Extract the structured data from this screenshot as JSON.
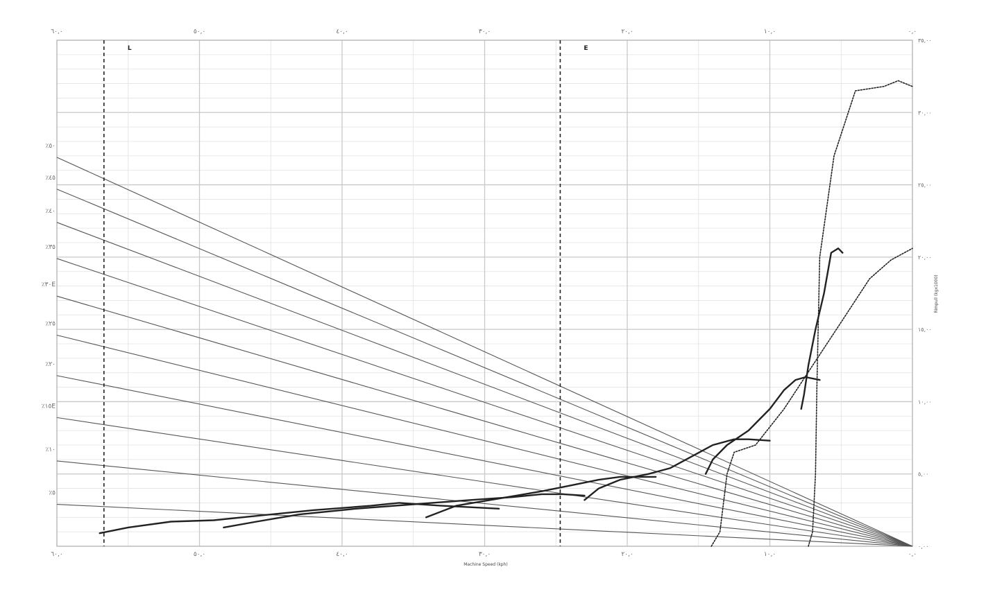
{
  "chart_data": {
    "type": "line",
    "title": "",
    "xlabel": "Machine Speed (kph)",
    "ylabel": "Rimpull (kgx1000)",
    "x_tick_labels": [
      "٦٠,٠",
      "٥٠,٠",
      "٤٠,٠",
      "٣٠,٠",
      "٢٠,٠",
      "١٠,٠",
      "٠,٠"
    ],
    "y_tick_labels": [
      "٠,٠٠",
      "٥,٠٠",
      "١٠,٠٠",
      "١٥,٠٠",
      "٢٠,٠٠",
      "٢٥,٠٠",
      "٣٠,٠٠",
      "٣٥,٠٠"
    ],
    "xlim": [
      60,
      0
    ],
    "ylim": [
      0,
      35
    ],
    "grade_labels": [
      "٪٥٠",
      "٪٤٥",
      "٪٤٠",
      "٪٣٥",
      "٪٣٠E",
      "٪٢٥",
      "٪٢٠",
      "٪١٥E",
      "٪١٠",
      "٪٥"
    ],
    "grade_lines": [
      {
        "label_index": 0,
        "y_at_left": 26.9
      },
      {
        "label_index": 1,
        "y_at_left": 24.7
      },
      {
        "label_index": 2,
        "y_at_left": 22.4
      },
      {
        "label_index": 3,
        "y_at_left": 19.9
      },
      {
        "label_index": 4,
        "y_at_left": 17.3
      },
      {
        "label_index": 5,
        "y_at_left": 14.6
      },
      {
        "label_index": 6,
        "y_at_left": 11.8
      },
      {
        "label_index": 7,
        "y_at_left": 8.9
      },
      {
        "label_index": 8,
        "y_at_left": 5.9
      },
      {
        "label_index": 9,
        "y_at_left": 2.9
      }
    ],
    "zone_markers": [
      {
        "label": "L",
        "x": 56.7
      },
      {
        "label": "E",
        "x": 24.7
      }
    ],
    "series": [
      {
        "style": "solid",
        "points": [
          [
            57.0,
            0.9
          ],
          [
            55.0,
            1.3
          ],
          [
            52.0,
            1.7
          ],
          [
            49.0,
            1.8
          ],
          [
            46.0,
            2.1
          ],
          [
            42.0,
            2.5
          ],
          [
            38.0,
            2.8
          ],
          [
            36.0,
            3.0
          ],
          [
            33.0,
            2.8
          ],
          [
            31.0,
            2.7
          ],
          [
            29.0,
            2.6
          ]
        ]
      },
      {
        "style": "solid",
        "points": [
          [
            48.3,
            1.3
          ],
          [
            46.0,
            1.7
          ],
          [
            43.0,
            2.2
          ],
          [
            39.0,
            2.6
          ],
          [
            35.0,
            2.9
          ],
          [
            31.0,
            3.2
          ],
          [
            28.0,
            3.4
          ],
          [
            26.0,
            3.6
          ],
          [
            24.5,
            3.6
          ],
          [
            23.0,
            3.5
          ]
        ]
      },
      {
        "style": "solid",
        "points": [
          [
            34.1,
            2.0
          ],
          [
            32.0,
            2.8
          ],
          [
            29.0,
            3.3
          ],
          [
            26.0,
            3.8
          ],
          [
            24.0,
            4.2
          ],
          [
            22.0,
            4.6
          ],
          [
            20.5,
            4.8
          ],
          [
            19.0,
            4.8
          ],
          [
            18.0,
            4.8
          ]
        ]
      },
      {
        "style": "solid",
        "points": [
          [
            23.0,
            3.2
          ],
          [
            22.0,
            4.0
          ],
          [
            20.5,
            4.6
          ],
          [
            18.5,
            5.0
          ],
          [
            17.0,
            5.4
          ],
          [
            15.5,
            6.2
          ],
          [
            14.0,
            7.0
          ],
          [
            12.5,
            7.4
          ],
          [
            11.5,
            7.4
          ],
          [
            10.0,
            7.3
          ]
        ]
      },
      {
        "style": "solid",
        "points": [
          [
            14.5,
            5.0
          ],
          [
            14.0,
            6.0
          ],
          [
            13.0,
            7.0
          ],
          [
            11.5,
            8.0
          ],
          [
            10.0,
            9.5
          ],
          [
            9.0,
            10.8
          ],
          [
            8.2,
            11.5
          ],
          [
            7.5,
            11.7
          ],
          [
            6.5,
            11.5
          ]
        ]
      },
      {
        "style": "solid",
        "points": [
          [
            7.8,
            9.5
          ],
          [
            7.6,
            10.5
          ],
          [
            7.3,
            12.5
          ],
          [
            6.8,
            15.0
          ],
          [
            6.2,
            17.5
          ],
          [
            5.7,
            20.3
          ],
          [
            5.2,
            20.6
          ],
          [
            4.9,
            20.3
          ]
        ]
      },
      {
        "style": "dotted",
        "points": [
          [
            14.1,
            0.0
          ],
          [
            13.5,
            1.0
          ],
          [
            13.0,
            5.0
          ],
          [
            12.5,
            6.5
          ],
          [
            11.0,
            7.0
          ],
          [
            9.0,
            9.5
          ],
          [
            7.0,
            12.5
          ],
          [
            5.0,
            15.5
          ],
          [
            3.0,
            18.5
          ],
          [
            1.5,
            19.8
          ],
          [
            0.0,
            20.6
          ]
        ]
      },
      {
        "style": "dotted",
        "points": [
          [
            7.3,
            0.0
          ],
          [
            7.0,
            1.0
          ],
          [
            6.8,
            5.0
          ],
          [
            6.7,
            11.0
          ],
          [
            6.5,
            20.0
          ],
          [
            5.5,
            27.0
          ],
          [
            4.0,
            31.5
          ],
          [
            2.0,
            31.8
          ],
          [
            1.0,
            32.2
          ],
          [
            0.0,
            31.8
          ]
        ]
      }
    ]
  }
}
